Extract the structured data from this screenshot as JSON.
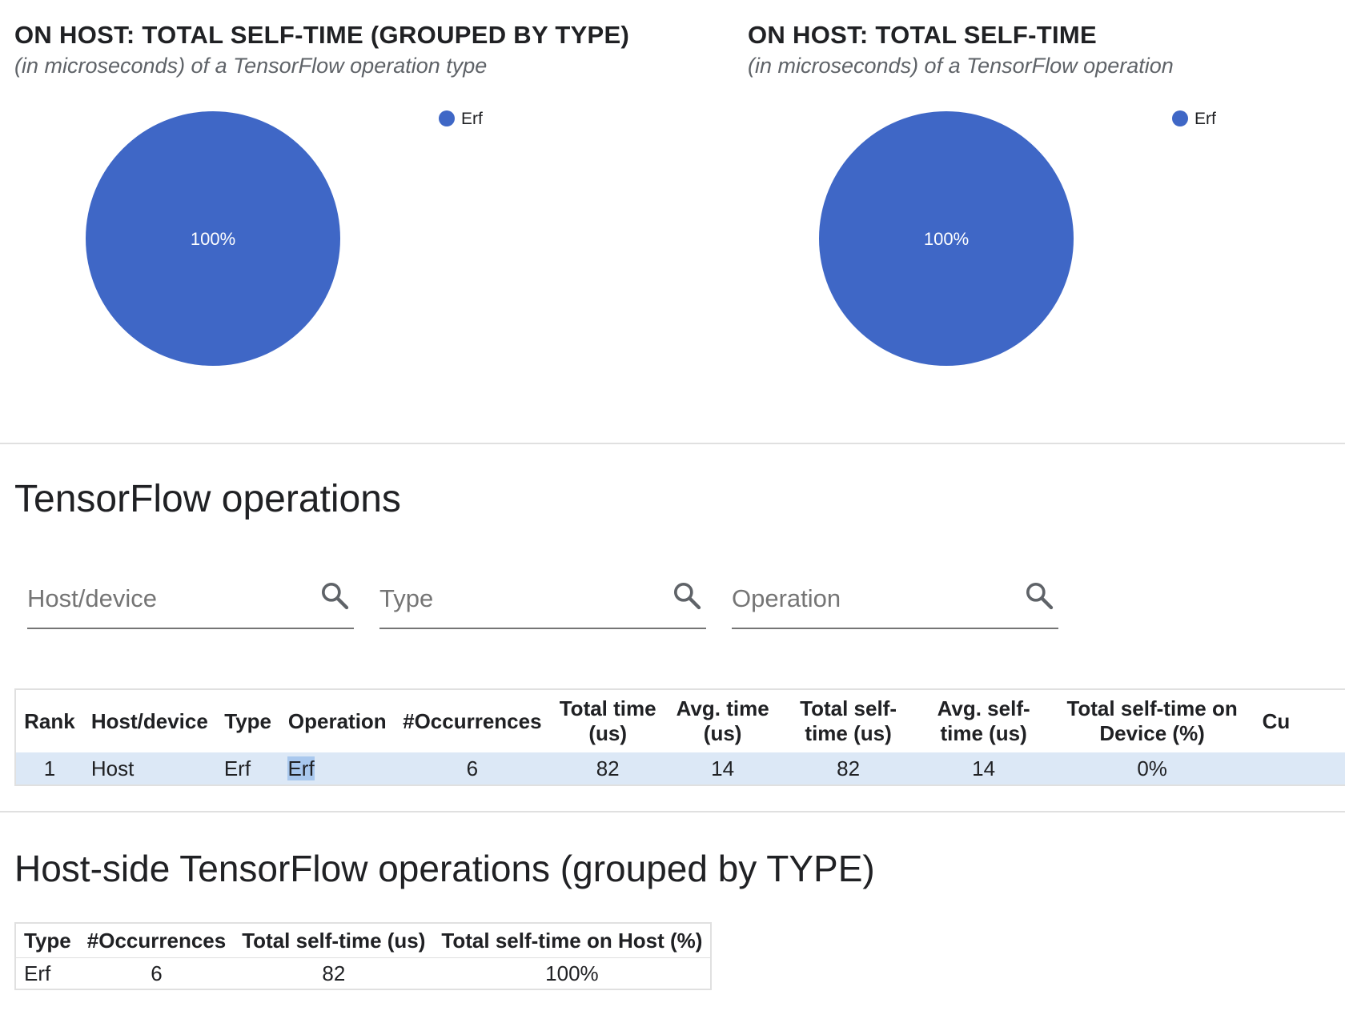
{
  "chart_data": [
    {
      "type": "pie",
      "title": "ON HOST: TOTAL SELF-TIME (GROUPED BY TYPE)",
      "subtitle": "(in microseconds) of a TensorFlow operation type",
      "labels": [
        "Erf"
      ],
      "values": [
        100
      ],
      "slice_labels": [
        "100%"
      ],
      "colors": [
        "#3f67c6"
      ],
      "legend": "top-right"
    },
    {
      "type": "pie",
      "title": "ON HOST: TOTAL SELF-TIME",
      "subtitle": "(in microseconds) of a TensorFlow operation",
      "labels": [
        "Erf"
      ],
      "values": [
        100
      ],
      "slice_labels": [
        "100%"
      ],
      "colors": [
        "#3f67c6"
      ],
      "legend": "top-right"
    }
  ],
  "ops_section": {
    "title": "TensorFlow operations",
    "filters": {
      "host_placeholder": "Host/device",
      "type_placeholder": "Type",
      "operation_placeholder": "Operation",
      "icon": "search-icon"
    },
    "table": {
      "headers": {
        "rank": "Rank",
        "host": "Host/device",
        "type": "Type",
        "operation": "Operation",
        "occurrences": "#Occurrences",
        "total_time_1": "Total time",
        "total_time_2": "(us)",
        "avg_time_1": "Avg. time",
        "avg_time_2": "(us)",
        "total_self_1": "Total self-",
        "total_self_2": "time (us)",
        "avg_self_1": "Avg. self-",
        "avg_self_2": "time (us)",
        "device_pct_1": "Total self-time on",
        "device_pct_2": "Device (%)",
        "cumulative": "Cu"
      },
      "rows": [
        {
          "rank": "1",
          "host": "Host",
          "type": "Erf",
          "operation": "Erf",
          "occurrences": "6",
          "total_time": "82",
          "avg_time": "14",
          "total_self_time": "82",
          "avg_self_time": "14",
          "device_pct": "0%"
        }
      ]
    }
  },
  "host_section": {
    "title": "Host-side TensorFlow operations (grouped by TYPE)",
    "table": {
      "headers": {
        "type": "Type",
        "occurrences": "#Occurrences",
        "total_self": "Total self-time (us)",
        "host_pct": "Total self-time on Host (%)"
      },
      "rows": [
        {
          "type": "Erf",
          "occurrences": "6",
          "total_self": "82",
          "host_pct": "100%"
        }
      ]
    }
  },
  "colors": {
    "pie": "#3f67c6",
    "selected_row": "#dce8f6",
    "divider": "#e0e0e0"
  }
}
